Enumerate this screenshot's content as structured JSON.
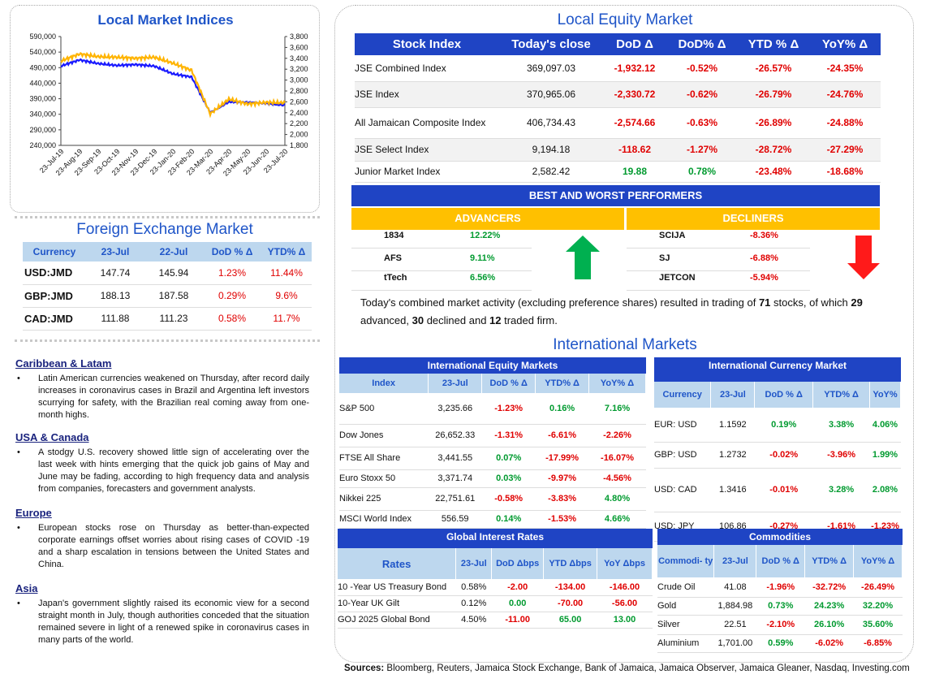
{
  "chart": {
    "title": "Local Market Indices",
    "left_ticks": [
      "590,000",
      "540,000",
      "490,000",
      "440,000",
      "390,000",
      "340,000",
      "290,000",
      "240,000"
    ],
    "right_ticks": [
      "3,800",
      "3,600",
      "3,400",
      "3,200",
      "3,000",
      "2,800",
      "2,600",
      "2,400",
      "2,200",
      "2,000",
      "1,800"
    ],
    "x_ticks": [
      "23-Jul-19",
      "23-Aug-19",
      "23-Sep-19",
      "23-Oct-19",
      "23-Nov-19",
      "23-Dec-19",
      "23-Jan-20",
      "23-Feb-20",
      "23-Mar-20",
      "23-Apr-20",
      "23-May-20",
      "23-Jun-20",
      "23-Jul-20"
    ]
  },
  "chart_data": {
    "type": "line",
    "title": "Local Market Indices",
    "x": [
      "23-Jul-19",
      "23-Aug-19",
      "23-Sep-19",
      "23-Oct-19",
      "23-Nov-19",
      "23-Dec-19",
      "23-Jan-20",
      "23-Feb-20",
      "23-Mar-20",
      "23-Apr-20",
      "23-May-20",
      "23-Jun-20",
      "23-Jul-20"
    ],
    "ylim_left": [
      240000,
      590000
    ],
    "ylim_right": [
      1800,
      3800
    ],
    "series": [
      {
        "color": "#1a1aff",
        "axis": "left",
        "values": [
          495000,
          515000,
          503000,
          497000,
          500000,
          495000,
          470000,
          460000,
          345000,
          380000,
          378000,
          375000,
          369097
        ]
      },
      {
        "color": "#ffb400",
        "axis": "right",
        "values": [
          3350,
          3480,
          3430,
          3420,
          3400,
          3420,
          3310,
          3180,
          2380,
          2650,
          2560,
          2590,
          2582
        ]
      }
    ],
    "grid": false
  },
  "fx": {
    "title": "Foreign Exchange Market",
    "headers": [
      "Currency",
      "23-Jul",
      "22-Jul",
      "DoD % Δ",
      "YTD% Δ"
    ],
    "rows": [
      [
        "USD:JMD",
        "147.74",
        "145.94",
        "1.23%",
        "11.44%"
      ],
      [
        "GBP:JMD",
        "188.13",
        "187.58",
        "0.29%",
        "9.6%"
      ],
      [
        "CAD:JMD",
        "111.88",
        "111.23",
        "0.58%",
        "11.7%"
      ]
    ]
  },
  "news": [
    {
      "head": "Caribbean & Latam",
      "body": "Latin American currencies weakened on Thursday, after record daily increases in coronavirus cases in Brazil and Argentina left investors scurrying for safety, with the Brazilian real coming away from one-month highs."
    },
    {
      "head": "USA & Canada",
      "body": "A stodgy U.S. recovery showed little sign of accelerating over the last week with hints emerging that the quick job gains of May and June may be fading, according to high frequency data and analysis from companies, forecasters and government analysts."
    },
    {
      "head": "Europe",
      "body": "European stocks rose on Thursday as better-than-expected corporate earnings offset worries about rising cases of COVID -19 and a sharp escalation in tensions between the United States and China."
    },
    {
      "head": "Asia",
      "body": "Japan's government slightly raised its economic view for a second straight month in July, though authorities conceded that the situation remained severe in light of a renewed spike in coronavirus cases in many parts of the world."
    }
  ],
  "equity": {
    "title": "Local Equity Market",
    "headers": [
      "Stock Index",
      "Today's close",
      "DoD  Δ",
      "DoD% Δ",
      "YTD % Δ",
      "YoY% Δ"
    ],
    "rows": [
      [
        "JSE Combined Index",
        "369,097.03",
        "-1,932.12",
        "-0.52%",
        "-26.57%",
        "-24.35%"
      ],
      [
        "JSE Index",
        "370,965.06",
        "-2,330.72",
        "-0.62%",
        "-26.79%",
        "-24.76%"
      ],
      [
        "All Jamaican Composite Index",
        "406,734.43",
        "-2,574.66",
        "-0.63%",
        "-26.89%",
        "-24.88%"
      ],
      [
        "JSE Select Index",
        "9,194.18",
        "-118.62",
        "-1.27%",
        "-28.72%",
        "-27.29%"
      ],
      [
        "Junior Market Index",
        "2,582.42",
        "19.88",
        "0.78%",
        "-23.48%",
        "-18.68%"
      ]
    ]
  },
  "performers": {
    "title": "BEST AND WORST PERFORMERS",
    "adv_label": "ADVANCERS",
    "dec_label": "DECLINERS",
    "advancers": [
      [
        "1834",
        "12.22%"
      ],
      [
        "AFS",
        "9.11%"
      ],
      [
        "tTech",
        "6.56%"
      ]
    ],
    "decliners": [
      [
        "SCIJA",
        "-8.36%"
      ],
      [
        "SJ",
        "-6.88%"
      ],
      [
        "JETCON",
        "-5.94%"
      ]
    ]
  },
  "summary": {
    "p1": "Today's combined market activity (excluding preference shares) resulted in trading of ",
    "n1": "71",
    "p2": " stocks, of which ",
    "n2": "29",
    "p3": " advanced, ",
    "n3": "30",
    "p4": " declined and ",
    "n4": "12",
    "p5": " traded firm."
  },
  "intl_title": "International Markets",
  "ieq": {
    "title": "International Equity Markets",
    "headers": [
      "Index",
      "23-Jul",
      "DoD % Δ",
      "YTD% Δ",
      "YoY% Δ"
    ],
    "rows": [
      [
        "S&P 500",
        "3,235.66",
        "-1.23%",
        "0.16%",
        "7.16%"
      ],
      [
        "Dow Jones",
        "26,652.33",
        "-1.31%",
        "-6.61%",
        "-2.26%"
      ],
      [
        "FTSE All Share",
        "3,441.55",
        "0.07%",
        "-17.99%",
        "-16.07%"
      ],
      [
        "Euro Stoxx 50",
        "3,371.74",
        "0.03%",
        "-9.97%",
        "-4.56%"
      ],
      [
        "Nikkei 225",
        "22,751.61",
        "-0.58%",
        "-3.83%",
        "4.80%"
      ],
      [
        "MSCI World Index",
        "556.59",
        "0.14%",
        "-1.53%",
        "4.66%"
      ]
    ]
  },
  "icur": {
    "title": "International Currency Market",
    "headers": [
      "Currency",
      "23-Jul",
      "DoD % Δ",
      "YTD% Δ",
      "YoY%"
    ],
    "rows": [
      [
        "EUR: USD",
        "1.1592",
        "0.19%",
        "3.38%",
        "4.06%"
      ],
      [
        "GBP: USD",
        "1.2732",
        "-0.02%",
        "-3.96%",
        "1.99%"
      ],
      [
        "USD: CAD",
        "1.3416",
        "-0.01%",
        "3.28%",
        "2.08%"
      ],
      [
        "USD: JPY",
        "106.86",
        "-0.27%",
        "-1.61%",
        "-1.23%"
      ]
    ]
  },
  "rates": {
    "title": "Global Interest Rates",
    "headers": [
      "Rates",
      "23-Jul",
      "DoD Δbps",
      "YTD Δbps",
      "YoY Δbps"
    ],
    "rows": [
      [
        "10 -Year US Treasury Bond",
        "0.58%",
        "-2.00",
        "-134.00",
        "-146.00"
      ],
      [
        "10-Year UK Gilt",
        "0.12%",
        "0.00",
        "-70.00",
        "-56.00"
      ],
      [
        "GOJ 2025 Global Bond",
        "4.50%",
        "-11.00",
        "65.00",
        "13.00"
      ]
    ]
  },
  "comm": {
    "title": "Commodities",
    "headers": [
      "Commodi- ty",
      "23-Jul",
      "DoD % Δ",
      "YTD% Δ",
      "YoY% Δ"
    ],
    "rows": [
      [
        "Crude Oil",
        "41.08",
        "-1.96%",
        "-32.72%",
        "-26.49%"
      ],
      [
        "Gold",
        "1,884.98",
        "0.73%",
        "24.23%",
        "32.20%"
      ],
      [
        "Silver",
        "22.51",
        "-2.10%",
        "26.10%",
        "35.60%"
      ],
      [
        "Aluminium",
        "1,701.00",
        "0.59%",
        "-6.02%",
        "-6.85%"
      ]
    ]
  },
  "sources": {
    "label": "Sources:",
    "text": " Bloomberg, Reuters, Jamaica Stock Exchange, Bank of Jamaica, Jamaica Observer, Jamaica Gleaner, Nasdaq, Investing.com"
  },
  "colors": {
    "blue": "#1f44c4",
    "light_blue": "#bdd7ee",
    "yellow": "#ffc000",
    "red": "#e00000",
    "green": "#009a2f"
  }
}
